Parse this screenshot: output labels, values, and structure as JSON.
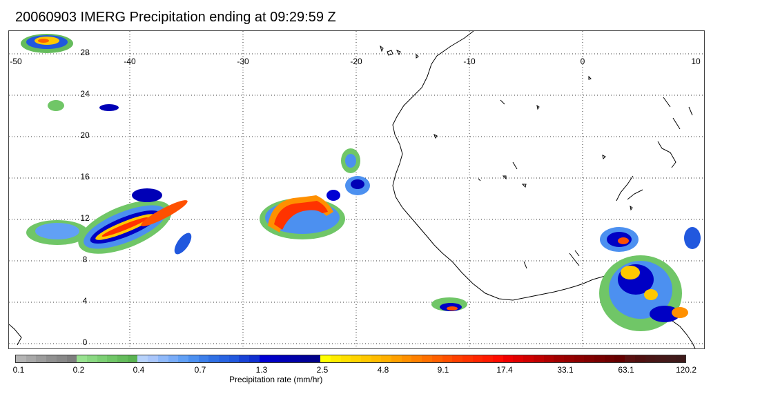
{
  "title": "20060903 IMERG Precipitation ending at 09:29:59 Z",
  "map": {
    "lon_ticks": [
      "-50",
      "-40",
      "-30",
      "-20",
      "-10",
      "0",
      "10"
    ],
    "lat_ticks": [
      "28",
      "24",
      "20",
      "16",
      "12",
      "8",
      "4",
      "0"
    ],
    "colors": {
      "coast": "#000000",
      "grid": "#333333"
    }
  },
  "colorbar": {
    "title": "Precipitation rate (mm/hr)",
    "labels": [
      "0.1",
      "0.2",
      "0.4",
      "0.7",
      "1.3",
      "2.5",
      "4.8",
      "9.1",
      "17.4",
      "33.1",
      "63.1",
      "120.2"
    ],
    "colors": [
      "#b4b4b4",
      "#a8a8a8",
      "#9c9c9c",
      "#909090",
      "#888888",
      "#7e7e7e",
      "#98e290",
      "#8ad882",
      "#7ccf74",
      "#70c667",
      "#65bc5c",
      "#5ab352",
      "#b7d2fb",
      "#a9c6fb",
      "#8fb9fa",
      "#79acf8",
      "#61a0f5",
      "#4c90f0",
      "#3d7fea",
      "#3070e4",
      "#2964e2",
      "#2158de",
      "#1842d6",
      "#0f2fd0",
      "#0000d4",
      "#0000c4",
      "#0000b6",
      "#0000a8",
      "#000098",
      "#00008a",
      "#ffff00",
      "#ffec00",
      "#ffe000",
      "#ffd400",
      "#ffc800",
      "#ffbc00",
      "#ffb000",
      "#ffa000",
      "#ff9000",
      "#ff8000",
      "#ff7000",
      "#ff6000",
      "#ff5000",
      "#ff4000",
      "#ff3300",
      "#ff2600",
      "#ff1a00",
      "#ff0c00",
      "#f00000",
      "#e00000",
      "#d00000",
      "#c00000",
      "#b00000",
      "#a00000",
      "#960000",
      "#8c0000",
      "#820000",
      "#780000",
      "#6e0000",
      "#640000",
      "#5a1010",
      "#501010",
      "#4a1515",
      "#461818",
      "#421a1a",
      "#3e1a1a"
    ]
  }
}
